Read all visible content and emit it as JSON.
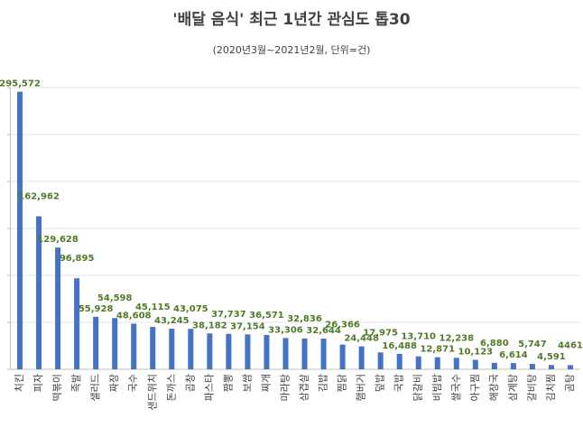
{
  "chart_data": {
    "type": "bar",
    "title": "'배달 음식' 최근 1년간 관심도 톱30",
    "subtitle": "(2020년3월~2021년2월, 단위=건)",
    "categories": [
      "치킨",
      "피자",
      "떡볶이",
      "족발",
      "샐러드",
      "짜장",
      "국수",
      "샌드위치",
      "돈까스",
      "곱창",
      "파스타",
      "짬뽕",
      "보쌈",
      "찌개",
      "마라탕",
      "삼겹살",
      "김밥",
      "찜닭",
      "햄버거",
      "덮밥",
      "국밥",
      "닭갈비",
      "비빔밥",
      "쌀국수",
      "아구찜",
      "해장국",
      "삼계탕",
      "갈비탕",
      "김치찜",
      "곰탕"
    ],
    "values": [
      295572,
      162962,
      129628,
      96895,
      55928,
      54598,
      48608,
      45115,
      43245,
      43075,
      38182,
      37737,
      37154,
      36571,
      33306,
      32836,
      32644,
      26366,
      24448,
      17975,
      16488,
      13710,
      12871,
      12238,
      10123,
      6880,
      6614,
      5747,
      4591,
      4461
    ],
    "value_labels": [
      "295,572",
      "162,962",
      "129,628",
      "96,895",
      "55,928",
      "54,598",
      "48,608",
      "45,115",
      "43,245",
      "43,075",
      "38,182",
      "37,737",
      "37,154",
      "36,571",
      "33,306",
      "32,836",
      "32,644",
      "26,366",
      "24,448",
      "17,975",
      "16,488",
      "13,710",
      "12,871",
      "12,238",
      "10,123",
      "6,880",
      "6,614",
      "5,747",
      "4,591",
      "4461"
    ],
    "color": "#4472c4",
    "label_color": "#4f7a28",
    "ylim": [
      0,
      300000
    ],
    "yticks": [
      0,
      50000,
      100000,
      150000,
      200000,
      250000,
      300000
    ],
    "grid": true
  }
}
